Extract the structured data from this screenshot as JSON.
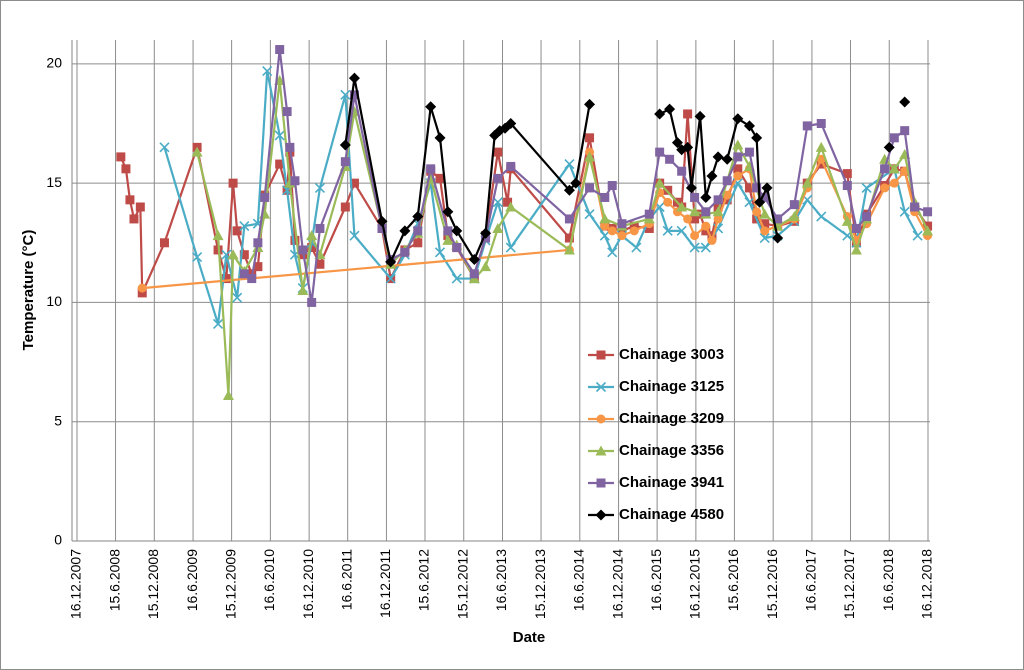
{
  "chart_data": {
    "type": "line",
    "x_label": "Date",
    "y_label": "Temperature (°C)",
    "xlim": [
      "2007-12-16",
      "2018-12-16"
    ],
    "ylim": [
      0,
      21
    ],
    "yticks": [
      0,
      5,
      10,
      15,
      20
    ],
    "xticks": [
      {
        "value": "2007-12-16",
        "label": "16.12.2007"
      },
      {
        "value": "2008-06-15",
        "label": "15.6.2008"
      },
      {
        "value": "2008-12-15",
        "label": "15.12.2008"
      },
      {
        "value": "2009-06-16",
        "label": "16.6.2009"
      },
      {
        "value": "2009-12-15",
        "label": "15.12.2009"
      },
      {
        "value": "2010-06-16",
        "label": "16.6.2010"
      },
      {
        "value": "2010-12-16",
        "label": "16.12.2010"
      },
      {
        "value": "2011-06-16",
        "label": "16.6.2011"
      },
      {
        "value": "2011-12-16",
        "label": "16.12.2011"
      },
      {
        "value": "2012-06-15",
        "label": "15.6.2012"
      },
      {
        "value": "2012-12-15",
        "label": "15.12.2012"
      },
      {
        "value": "2013-06-16",
        "label": "16.6.2013"
      },
      {
        "value": "2013-12-15",
        "label": "15.12.2013"
      },
      {
        "value": "2014-06-16",
        "label": "16.6.2014"
      },
      {
        "value": "2014-12-16",
        "label": "16.12.2014"
      },
      {
        "value": "2015-06-16",
        "label": "16.6.2015"
      },
      {
        "value": "2015-12-16",
        "label": "16.12.2015"
      },
      {
        "value": "2016-06-15",
        "label": "15.6.2016"
      },
      {
        "value": "2016-12-15",
        "label": "15.12.2016"
      },
      {
        "value": "2017-06-16",
        "label": "16.6.2017"
      },
      {
        "value": "2017-12-15",
        "label": "15.12.2017"
      },
      {
        "value": "2018-06-16",
        "label": "16.6.2018"
      },
      {
        "value": "2018-12-16",
        "label": "16.12.2018"
      }
    ],
    "grid": true,
    "legend": "right",
    "series": [
      {
        "name": "Chainage 3003",
        "color": "#be4b48",
        "marker": "square",
        "x": [
          "2008-07-10",
          "2008-08-03",
          "2008-08-22",
          "2008-09-10",
          "2008-10-10",
          "2008-10-19",
          "2009-02-01",
          "2009-07-05",
          "2009-10-12",
          "2009-11-20",
          "2009-12-22",
          "2010-01-10",
          "2010-02-13",
          "2010-03-20",
          "2010-04-18",
          "2010-05-20",
          "2010-07-30",
          "2010-09-03",
          "2010-09-16",
          "2010-10-10",
          "2010-11-16",
          "2010-12-28",
          "2011-02-05",
          "2011-06-05",
          "2011-07-18",
          "2011-11-25",
          "2012-01-05",
          "2012-03-12",
          "2012-05-12",
          "2012-07-12",
          "2012-08-25",
          "2012-10-01",
          "2012-11-12",
          "2013-02-03",
          "2013-03-28",
          "2013-05-25",
          "2013-07-10",
          "2013-07-25",
          "2014-04-28",
          "2014-08-01",
          "2014-10-12",
          "2014-11-16",
          "2015-01-01",
          "2015-02-28",
          "2015-05-10",
          "2015-06-28",
          "2015-08-05",
          "2015-09-20",
          "2015-10-10",
          "2015-11-07",
          "2015-12-10",
          "2016-01-05",
          "2016-02-01",
          "2016-03-01",
          "2016-03-30",
          "2016-05-12",
          "2016-07-01",
          "2016-08-25",
          "2016-09-28",
          "2016-11-05",
          "2017-01-05",
          "2017-03-25",
          "2017-05-25",
          "2017-07-30",
          "2017-11-30",
          "2018-01-12",
          "2018-03-01",
          "2018-05-25",
          "2018-07-10",
          "2018-08-28",
          "2018-10-14",
          "2018-12-14"
        ],
        "values": [
          16.1,
          15.6,
          14.3,
          13.5,
          14.0,
          10.4,
          12.5,
          16.5,
          12.2,
          11.0,
          15.0,
          13.0,
          12.0,
          11.2,
          11.5,
          14.5,
          15.8,
          14.7,
          16.3,
          12.6,
          12.0,
          12.3,
          11.6,
          14.0,
          15.0,
          13.1,
          11.0,
          12.2,
          12.5,
          15.5,
          15.2,
          12.8,
          12.3,
          11.0,
          12.8,
          16.3,
          14.2,
          15.6,
          12.7,
          16.9,
          13.2,
          13.1,
          13.0,
          13.2,
          13.1,
          15.0,
          14.7,
          14.2,
          14.0,
          17.9,
          13.5,
          13.7,
          13.0,
          12.8,
          14.0,
          14.3,
          15.6,
          14.8,
          13.5,
          13.3,
          13.2,
          13.4,
          15.0,
          15.8,
          15.4,
          12.5,
          13.7,
          14.9,
          15.6,
          15.5,
          14.0,
          13.2
        ]
      },
      {
        "name": "Chainage 3125",
        "color": "#4bacc6",
        "marker": "x",
        "x": [
          "2009-02-01",
          "2009-07-05",
          "2009-10-12",
          "2009-11-20",
          "2010-01-10",
          "2010-02-13",
          "2010-04-18",
          "2010-06-01",
          "2010-07-30",
          "2010-09-03",
          "2010-10-10",
          "2010-11-16",
          "2010-12-28",
          "2011-02-05",
          "2011-06-05",
          "2011-07-18",
          "2012-01-05",
          "2012-03-12",
          "2012-05-12",
          "2012-07-12",
          "2012-08-25",
          "2012-11-12",
          "2013-02-03",
          "2013-03-28",
          "2013-05-25",
          "2013-07-25",
          "2014-04-28",
          "2014-08-01",
          "2014-10-12",
          "2014-11-16",
          "2015-01-01",
          "2015-03-10",
          "2015-05-10",
          "2015-06-28",
          "2015-08-05",
          "2015-10-10",
          "2015-12-10",
          "2016-02-01",
          "2016-03-30",
          "2016-07-01",
          "2016-08-25",
          "2016-11-05",
          "2017-01-05",
          "2017-03-25",
          "2017-05-25",
          "2017-07-30",
          "2017-11-30",
          "2018-01-12",
          "2018-03-01",
          "2018-07-10",
          "2018-08-28",
          "2018-10-28"
        ],
        "values": [
          16.5,
          11.9,
          9.1,
          12.0,
          10.2,
          13.2,
          13.3,
          19.7,
          17.0,
          14.7,
          12.0,
          10.6,
          12.5,
          14.8,
          18.7,
          12.8,
          11.0,
          12.0,
          13.3,
          15.0,
          12.1,
          11.0,
          11.0,
          12.6,
          14.2,
          12.3,
          15.8,
          13.7,
          12.8,
          12.1,
          12.8,
          12.3,
          13.5,
          14.0,
          13.0,
          13.0,
          12.3,
          12.3,
          13.1,
          15.0,
          14.2,
          12.7,
          12.8,
          13.4,
          14.3,
          13.6,
          12.8,
          12.5,
          14.8,
          15.6,
          13.8,
          12.8
        ]
      },
      {
        "name": "Chainage 3209",
        "color": "#f79646",
        "marker": "circle",
        "x": [
          "2008-10-19",
          "2014-04-28",
          "2014-08-01",
          "2014-10-12",
          "2014-11-16",
          "2015-01-01",
          "2015-02-28",
          "2015-05-10",
          "2015-06-28",
          "2015-08-05",
          "2015-09-20",
          "2015-11-07",
          "2015-12-10",
          "2016-02-01",
          "2016-03-01",
          "2016-03-30",
          "2016-05-12",
          "2016-07-01",
          "2016-08-25",
          "2016-09-28",
          "2016-11-05",
          "2017-01-05",
          "2017-03-25",
          "2017-05-25",
          "2017-07-30",
          "2017-11-30",
          "2018-01-12",
          "2018-03-01",
          "2018-05-25",
          "2018-07-10",
          "2018-08-28",
          "2018-10-14",
          "2018-12-14"
        ],
        "values": [
          10.6,
          12.2,
          16.3,
          13.2,
          13.0,
          12.8,
          13.0,
          13.3,
          14.6,
          14.2,
          13.8,
          13.5,
          12.8,
          13.2,
          12.6,
          13.5,
          14.5,
          15.3,
          15.6,
          13.8,
          13.0,
          13.2,
          13.5,
          14.8,
          16.0,
          13.6,
          12.6,
          13.3,
          14.8,
          15.0,
          15.5,
          13.8,
          12.8
        ]
      },
      {
        "name": "Chainage 3356",
        "color": "#9bbb59",
        "marker": "triangle",
        "x": [
          "2009-07-05",
          "2009-10-12",
          "2009-11-30",
          "2009-12-22",
          "2010-02-13",
          "2010-04-18",
          "2010-05-20",
          "2010-07-30",
          "2010-09-16",
          "2010-11-16",
          "2010-12-28",
          "2011-02-05",
          "2011-06-05",
          "2011-07-18",
          "2012-01-05",
          "2012-03-12",
          "2012-05-12",
          "2012-07-12",
          "2012-10-01",
          "2012-11-12",
          "2013-02-03",
          "2013-03-28",
          "2013-05-25",
          "2013-07-25",
          "2014-04-28",
          "2014-08-01",
          "2014-10-12",
          "2015-01-01",
          "2015-05-10",
          "2015-06-28",
          "2015-10-10",
          "2015-12-10",
          "2016-02-01",
          "2016-03-30",
          "2016-07-01",
          "2016-08-25",
          "2016-11-05",
          "2017-01-05",
          "2017-03-25",
          "2017-05-25",
          "2017-07-30",
          "2017-11-30",
          "2018-01-12",
          "2018-03-01",
          "2018-05-25",
          "2018-07-10",
          "2018-08-28",
          "2018-10-14",
          "2018-12-14"
        ],
        "values": [
          16.3,
          12.8,
          6.1,
          12.0,
          11.3,
          12.3,
          13.7,
          19.3,
          15.0,
          10.5,
          12.8,
          12.0,
          15.7,
          18.0,
          11.6,
          12.2,
          12.9,
          15.2,
          12.6,
          12.4,
          11.0,
          11.5,
          13.1,
          14.0,
          12.2,
          16.1,
          13.5,
          13.2,
          13.5,
          15.0,
          14.0,
          13.8,
          13.7,
          13.8,
          16.6,
          15.7,
          13.7,
          13.2,
          13.6,
          15.0,
          16.5,
          13.4,
          12.2,
          13.5,
          16.0,
          15.6,
          16.2,
          14.2,
          13.0
        ]
      },
      {
        "name": "Chainage 3941",
        "color": "#8064a2",
        "marker": "square",
        "x": [
          "2010-02-13",
          "2010-03-20",
          "2010-04-18",
          "2010-05-20",
          "2010-07-30",
          "2010-09-03",
          "2010-09-16",
          "2010-10-10",
          "2010-11-16",
          "2010-12-28",
          "2011-02-05",
          "2011-06-05",
          "2011-07-18",
          "2011-11-25",
          "2012-01-05",
          "2012-03-12",
          "2012-05-12",
          "2012-07-12",
          "2012-10-01",
          "2012-11-12",
          "2013-02-03",
          "2013-03-28",
          "2013-05-25",
          "2013-07-25",
          "2014-04-28",
          "2014-08-01",
          "2014-10-12",
          "2014-11-16",
          "2015-01-01",
          "2015-05-10",
          "2015-06-28",
          "2015-08-14",
          "2015-10-10",
          "2015-12-10",
          "2016-02-01",
          "2016-03-30",
          "2016-05-12",
          "2016-07-01",
          "2016-08-25",
          "2016-09-28",
          "2016-11-05",
          "2017-01-05",
          "2017-03-25",
          "2017-05-25",
          "2017-07-30",
          "2017-11-30",
          "2018-01-12",
          "2018-03-01",
          "2018-05-25",
          "2018-07-10",
          "2018-08-28",
          "2018-10-14",
          "2018-12-14"
        ],
        "values": [
          11.2,
          11.0,
          12.5,
          14.4,
          20.6,
          18.0,
          16.5,
          15.1,
          12.2,
          10.0,
          13.1,
          15.9,
          18.7,
          13.1,
          11.8,
          12.1,
          13.0,
          15.6,
          13.0,
          12.3,
          11.2,
          12.7,
          15.2,
          15.7,
          13.5,
          14.8,
          14.4,
          14.9,
          13.3,
          13.7,
          16.3,
          16.0,
          15.5,
          14.4,
          13.8,
          14.3,
          15.1,
          16.1,
          16.3,
          14.8,
          14.4,
          13.5,
          14.1,
          17.4,
          17.5,
          14.9,
          13.1,
          13.6,
          15.6,
          16.9,
          17.2,
          14.0,
          13.8
        ]
      },
      {
        "name": "Chainage 4580",
        "color": "#000000",
        "marker": "diamond",
        "x": [
          "2011-06-05",
          "2011-07-18",
          "2011-11-25",
          "2012-01-05",
          "2012-03-12",
          "2012-05-12",
          "2012-07-12",
          "2012-08-25",
          "2012-10-01",
          "2012-11-12",
          "2013-02-03",
          "2013-03-28",
          "2013-05-10",
          "2013-06-03",
          "2013-06-28",
          "2013-07-25",
          "2014-04-28",
          "2014-05-28",
          "2014-08-01",
          null,
          "2015-06-28",
          "2015-08-14",
          "2015-09-20",
          "2015-10-10",
          "2015-11-07",
          "2015-11-25",
          "2016-01-05",
          "2016-02-01",
          "2016-03-01",
          "2016-03-30",
          "2016-05-12",
          "2016-07-01",
          "2016-08-25",
          "2016-09-28",
          "2016-10-12",
          "2016-11-16",
          "2017-01-05",
          null,
          "2018-06-16",
          null,
          "2018-08-28"
        ],
        "values": [
          16.6,
          19.4,
          13.4,
          11.7,
          13.0,
          13.6,
          18.2,
          16.9,
          13.8,
          13.0,
          11.8,
          12.9,
          17.0,
          17.2,
          17.3,
          17.5,
          14.7,
          15.0,
          18.3,
          null,
          17.9,
          18.1,
          16.7,
          16.4,
          16.5,
          14.8,
          17.8,
          14.4,
          15.3,
          16.1,
          16.0,
          17.7,
          17.4,
          16.9,
          14.2,
          14.8,
          12.7,
          null,
          16.5,
          null,
          18.4
        ]
      }
    ]
  }
}
